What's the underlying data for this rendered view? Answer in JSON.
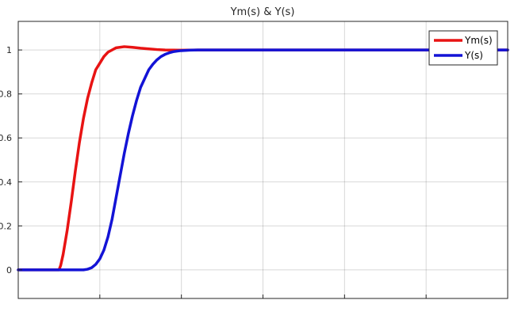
{
  "chart_data": {
    "type": "line",
    "title": "Ym(s) & Y(s)",
    "xlabel": "",
    "ylabel": "",
    "xlim": [
      0,
      6
    ],
    "ylim": [
      -0.13,
      1.13
    ],
    "yticks": [
      0,
      0.2,
      0.4,
      0.6,
      0.8,
      1
    ],
    "ytick_labels": [
      "0",
      "0.2",
      "0.4",
      "0.6",
      "0.8",
      "1"
    ],
    "xticks": [
      0,
      1,
      2,
      3,
      4,
      5,
      6
    ],
    "grid": true,
    "legend_position": "top-right",
    "series": [
      {
        "name": "Ym(s)",
        "color": "#e81313",
        "x": [
          0,
          0.5,
          0.52,
          0.55,
          0.6,
          0.65,
          0.7,
          0.75,
          0.8,
          0.85,
          0.9,
          0.95,
          1.0,
          1.05,
          1.1,
          1.15,
          1.2,
          1.3,
          1.4,
          1.5,
          1.6,
          1.7,
          1.8,
          2.0,
          2.2,
          2.5,
          6
        ],
        "y": [
          0,
          0,
          0.02,
          0.07,
          0.18,
          0.31,
          0.45,
          0.58,
          0.69,
          0.78,
          0.85,
          0.91,
          0.94,
          0.97,
          0.99,
          1.0,
          1.01,
          1.015,
          1.012,
          1.008,
          1.005,
          1.002,
          1.0,
          0.999,
          1.0,
          1.0,
          1.0
        ]
      },
      {
        "name": "Y(s)",
        "color": "#1313d6",
        "x": [
          0,
          0.8,
          0.85,
          0.9,
          0.95,
          1.0,
          1.05,
          1.1,
          1.15,
          1.2,
          1.25,
          1.3,
          1.35,
          1.4,
          1.45,
          1.5,
          1.55,
          1.6,
          1.65,
          1.7,
          1.75,
          1.8,
          1.85,
          1.9,
          1.95,
          2.0,
          2.1,
          2.2,
          2.4,
          2.6,
          6
        ],
        "y": [
          0,
          0,
          0.003,
          0.01,
          0.025,
          0.05,
          0.09,
          0.15,
          0.23,
          0.33,
          0.43,
          0.53,
          0.62,
          0.7,
          0.77,
          0.83,
          0.87,
          0.91,
          0.935,
          0.955,
          0.97,
          0.98,
          0.987,
          0.992,
          0.995,
          0.997,
          0.999,
          1.0,
          1.0,
          1.0,
          1.0
        ]
      }
    ]
  }
}
